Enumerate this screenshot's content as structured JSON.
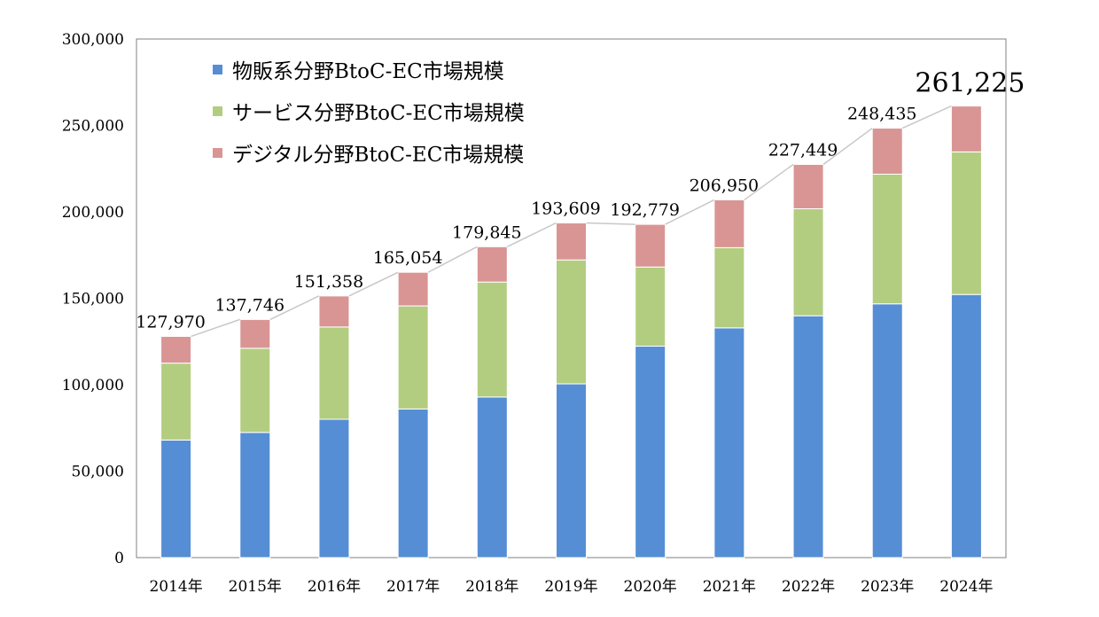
{
  "chart_data": {
    "type": "bar",
    "stacked": true,
    "categories": [
      "2014年",
      "2015年",
      "2016年",
      "2017年",
      "2018年",
      "2019年",
      "2020年",
      "2021年",
      "2022年",
      "2023年",
      "2024年"
    ],
    "series": [
      {
        "name": "物販系分野BtoC-EC市場規模",
        "color": "#558ed5",
        "values": [
          68000,
          72400,
          80000,
          86000,
          92900,
          100500,
          122300,
          132900,
          139900,
          146800,
          152200
        ]
      },
      {
        "name": "サービス分野BtoC-EC市場規模",
        "color": "#b3cd80",
        "values": [
          44500,
          48700,
          53400,
          59600,
          66500,
          71700,
          45800,
          46400,
          61900,
          75000,
          82500
        ]
      },
      {
        "name": "デジタル分野BtoC-EC市場規模",
        "color": "#d99594",
        "values": [
          15470,
          16646,
          17958,
          19454,
          20445,
          21409,
          24679,
          27650,
          25649,
          26635,
          26525
        ]
      }
    ],
    "totals": [
      127970,
      137746,
      151358,
      165054,
      179845,
      193609,
      192779,
      206950,
      227449,
      248435,
      261225
    ],
    "total_labels": [
      "127,970",
      "137,746",
      "151,358",
      "165,054",
      "179,845",
      "193,609",
      "192,779",
      "206,950",
      "227,449",
      "248,435",
      "261,225"
    ],
    "ylim": [
      0,
      300000
    ],
    "yticks": [
      0,
      50000,
      100000,
      150000,
      200000,
      250000,
      300000
    ],
    "ytick_labels": [
      "0",
      "50,000",
      "100,000",
      "150,000",
      "200,000",
      "250,000",
      "300,000"
    ],
    "legend_position": "top-left",
    "grid": false,
    "title": "",
    "xlabel": "",
    "ylabel": "",
    "line_color": "#c8c8c8",
    "axis_color": "#808080"
  }
}
